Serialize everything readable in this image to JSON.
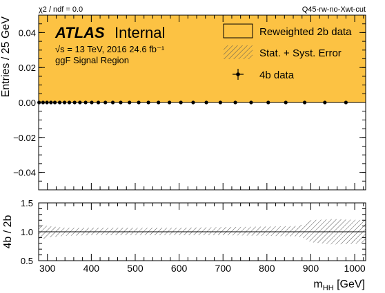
{
  "header": {
    "chi2_label": "χ2 / ndf = 0.0",
    "tag": "Q45-rw-no-Xwt-cut"
  },
  "atlas": {
    "brand": "ATLAS",
    "status": "Internal",
    "energy_line": "√s = 13 TeV, 2016 24.6 fb⁻¹",
    "region": "ggF Signal Region"
  },
  "colors": {
    "fill": "#fcc243",
    "hatch": "#555555",
    "data": "#000000"
  },
  "chart_data": [
    {
      "type": "area",
      "panel": "main",
      "ylabel": "Entries / 25 GeV",
      "ylim": [
        -0.05,
        0.05
      ],
      "yticks": [
        -0.04,
        -0.02,
        0.0,
        0.02,
        0.04
      ],
      "ytick_labels": [
        "−0.04",
        "−0.02",
        "0.00",
        "0.02",
        "0.04"
      ],
      "xlim": [
        280,
        1025
      ],
      "legend_position": "top-right",
      "series": [
        {
          "name": "Reweighted 2b data",
          "style": "filled-area",
          "note": "fills entire visible region (values above axis range)"
        },
        {
          "name": "Stat. + Syst. Error",
          "style": "hatched-band"
        },
        {
          "name": "4b data",
          "style": "points",
          "x": [
            281,
            290,
            299,
            308,
            317,
            328,
            339,
            350,
            362,
            374,
            387,
            401,
            416,
            432,
            449,
            467,
            487,
            508,
            530,
            553,
            578,
            604,
            632,
            662,
            694,
            728,
            764,
            803,
            843,
            886,
            932,
            980
          ],
          "y": [
            0,
            0,
            0,
            0,
            0,
            0,
            0,
            0,
            0,
            0,
            0,
            0,
            0,
            0,
            0,
            0,
            0,
            0,
            0,
            0,
            0,
            0,
            0,
            0,
            0,
            0,
            0,
            0,
            0,
            0,
            0,
            0
          ]
        }
      ]
    },
    {
      "type": "area",
      "panel": "ratio",
      "ylabel": "4b / 2b",
      "xlabel": "m_HH [GeV]",
      "xlabel_main": "m",
      "xlabel_sub": "HH",
      "xlabel_unit": " [GeV]",
      "ylim": [
        0.5,
        1.5
      ],
      "yticks": [
        0.5,
        1.0,
        1.5
      ],
      "ytick_labels": [
        "0.5",
        "1.0",
        "1.5"
      ],
      "xlim": [
        280,
        1025
      ],
      "xticks": [
        300,
        400,
        500,
        600,
        700,
        800,
        900,
        1000
      ],
      "xtick_labels": [
        "300",
        "400",
        "500",
        "600",
        "700",
        "800",
        "900",
        "1000"
      ],
      "series": [
        {
          "name": "Stat. + Syst. Error",
          "style": "hatched-band",
          "x": [
            280,
            300,
            340,
            400,
            500,
            600,
            700,
            800,
            870,
            880,
            900,
            950,
            1025
          ],
          "upper": [
            1.14,
            1.1,
            1.07,
            1.07,
            1.07,
            1.07,
            1.08,
            1.09,
            1.1,
            1.12,
            1.2,
            1.22,
            1.2
          ],
          "lower": [
            0.85,
            0.9,
            0.93,
            0.94,
            0.94,
            0.94,
            0.94,
            0.93,
            0.92,
            0.9,
            0.82,
            0.78,
            0.8
          ]
        }
      ],
      "reference_line": 1.0
    }
  ]
}
